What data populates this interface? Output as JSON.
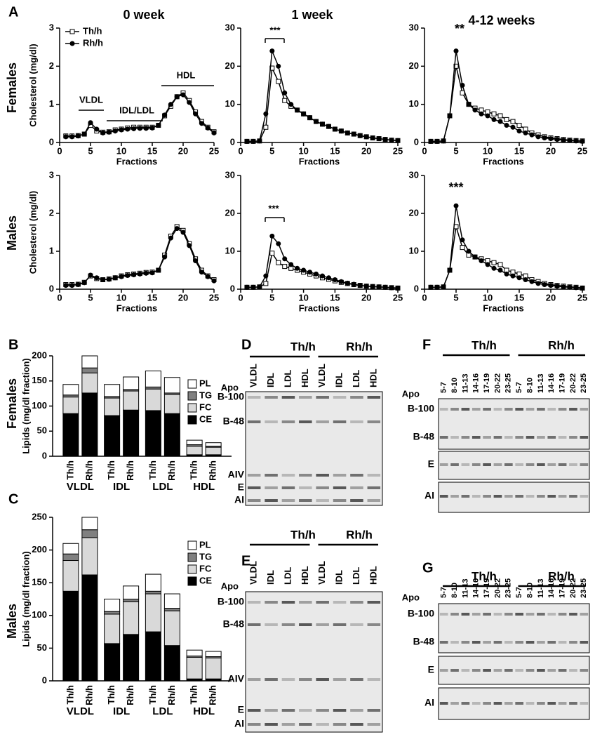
{
  "figure": {
    "panels": [
      "A",
      "B",
      "C",
      "D",
      "E",
      "F",
      "G"
    ],
    "columns": [
      "0 week",
      "1 week",
      "4-12 weeks"
    ],
    "rows": [
      "Females",
      "Males"
    ]
  },
  "gels": [
    {
      "genotypes": [
        "Th/h",
        "Rh/h"
      ],
      "apo": "Apo",
      "lanes": [
        "VLDL",
        "IDL",
        "LDL",
        "HDL",
        "VLDL",
        "IDL",
        "LDL",
        "HDL"
      ],
      "bands": [
        "B-100",
        "B-48",
        "AIV",
        "E",
        "AI"
      ]
    },
    {
      "genotypes": [
        "Th/h",
        "Rh/h"
      ],
      "apo": "Apo",
      "lanes": [
        "VLDL",
        "IDL",
        "LDL",
        "HDL",
        "VLDL",
        "IDL",
        "LDL",
        "HDL"
      ],
      "bands": [
        "B-100",
        "B-48",
        "AIV",
        "E",
        "AI"
      ]
    },
    {
      "genotypes": [
        "Th/h",
        "Rh/h"
      ],
      "apo": "Apo",
      "lanes": [
        "5-7",
        "8-10",
        "11-13",
        "14-16",
        "17-19",
        "20-22",
        "23-25",
        "5-7",
        "8-10",
        "11-13",
        "14-16",
        "17-19",
        "20-22",
        "23-25"
      ],
      "bands": [
        "B-100",
        "B-48",
        "E",
        "AI"
      ]
    },
    {
      "genotypes": [
        "Th/h",
        "Rh/h"
      ],
      "apo": "Apo",
      "lanes": [
        "5-7",
        "8-10",
        "11-13",
        "14-16",
        "17-19",
        "20-22",
        "23-25",
        "5-7",
        "8-10",
        "11-13",
        "14-16",
        "17-19",
        "20-22",
        "23-25"
      ],
      "bands": [
        "B-100",
        "B-48",
        "E",
        "AI"
      ]
    }
  ],
  "chart_data": [
    {
      "type": "line",
      "ylabel": "Cholesterol (mg/dl)",
      "xlabel": "Fractions",
      "annotations": [
        "VLDL",
        "IDL/LDL",
        "HDL"
      ],
      "legend": "upper left",
      "x": [
        1,
        2,
        3,
        4,
        5,
        6,
        7,
        8,
        9,
        10,
        11,
        12,
        13,
        14,
        15,
        16,
        17,
        18,
        19,
        20,
        21,
        22,
        23,
        24,
        25
      ],
      "xlim": [
        0,
        25
      ],
      "xticks": [
        0,
        5,
        10,
        15,
        20,
        25
      ],
      "ylim": [
        0,
        3
      ],
      "yticks": [
        0,
        1,
        2,
        3
      ],
      "series": [
        {
          "name": "Th/h",
          "color": "#000000",
          "marker": "square",
          "marker_fill": "#ffffff",
          "values": [
            0.17,
            0.17,
            0.18,
            0.22,
            0.45,
            0.3,
            0.27,
            0.28,
            0.33,
            0.35,
            0.38,
            0.4,
            0.4,
            0.4,
            0.4,
            0.45,
            0.7,
            0.95,
            1.2,
            1.3,
            1.1,
            0.8,
            0.55,
            0.4,
            0.28
          ]
        },
        {
          "name": "Rh/h",
          "color": "#000000",
          "marker": "circle",
          "marker_fill": "#000000",
          "values": [
            0.15,
            0.15,
            0.17,
            0.22,
            0.52,
            0.35,
            0.25,
            0.27,
            0.3,
            0.33,
            0.35,
            0.36,
            0.37,
            0.37,
            0.38,
            0.45,
            0.72,
            1.0,
            1.2,
            1.25,
            1.05,
            0.75,
            0.5,
            0.38,
            0.25
          ]
        }
      ]
    },
    {
      "type": "line",
      "xlabel": "Fractions",
      "annotations": [
        "***"
      ],
      "x": [
        1,
        2,
        3,
        4,
        5,
        6,
        7,
        8,
        9,
        10,
        11,
        12,
        13,
        14,
        15,
        16,
        17,
        18,
        19,
        20,
        21,
        22,
        23,
        24,
        25
      ],
      "xlim": [
        0,
        25
      ],
      "xticks": [
        0,
        5,
        10,
        15,
        20,
        25
      ],
      "ylim": [
        0,
        30
      ],
      "yticks": [
        0,
        10,
        20,
        30
      ],
      "series": [
        {
          "name": "Th/h",
          "color": "#000000",
          "marker": "square",
          "marker_fill": "#ffffff",
          "values": [
            0.3,
            0.3,
            0.4,
            4,
            19.5,
            16,
            11,
            9.5,
            8.5,
            7.5,
            6.5,
            5.5,
            4.8,
            4.2,
            3.5,
            3,
            2.5,
            2.2,
            1.8,
            1.5,
            1.2,
            1,
            0.8,
            0.6,
            0.5
          ]
        },
        {
          "name": "Rh/h",
          "color": "#000000",
          "marker": "circle",
          "marker_fill": "#000000",
          "values": [
            0.3,
            0.3,
            0.4,
            7.5,
            24,
            20,
            13,
            10,
            8.5,
            7.5,
            6.5,
            5.5,
            4.8,
            4.2,
            3.5,
            3,
            2.5,
            2.2,
            1.8,
            1.5,
            1.2,
            1,
            0.8,
            0.6,
            0.5
          ]
        }
      ]
    },
    {
      "type": "line",
      "xlabel": "Fractions",
      "annotations": [
        "**"
      ],
      "x": [
        1,
        2,
        3,
        4,
        5,
        6,
        7,
        8,
        9,
        10,
        11,
        12,
        13,
        14,
        15,
        16,
        17,
        18,
        19,
        20,
        21,
        22,
        23,
        24,
        25
      ],
      "xlim": [
        0,
        25
      ],
      "xticks": [
        0,
        5,
        10,
        15,
        20,
        25
      ],
      "ylim": [
        0,
        30
      ],
      "yticks": [
        0,
        10,
        20,
        30
      ],
      "series": [
        {
          "name": "Th/h",
          "color": "#000000",
          "marker": "square",
          "marker_fill": "#ffffff",
          "values": [
            0.3,
            0.3,
            0.4,
            7,
            20,
            13,
            10,
            9,
            8.5,
            8,
            7.5,
            7,
            6,
            5.5,
            4.5,
            3.5,
            2.5,
            2,
            1.5,
            1.2,
            1,
            0.8,
            0.6,
            0.5,
            0.4
          ]
        },
        {
          "name": "Rh/h",
          "color": "#000000",
          "marker": "circle",
          "marker_fill": "#000000",
          "values": [
            0.3,
            0.3,
            0.4,
            7,
            24,
            15,
            10,
            8.5,
            7.5,
            7,
            6,
            5.5,
            4.5,
            4,
            3,
            2.5,
            2,
            1.5,
            1.2,
            1,
            0.8,
            0.6,
            0.5,
            0.4,
            0.3
          ]
        }
      ]
    },
    {
      "type": "line",
      "ylabel": "Cholesterol (mg/dl)",
      "xlabel": "Fractions",
      "x": [
        1,
        2,
        3,
        4,
        5,
        6,
        7,
        8,
        9,
        10,
        11,
        12,
        13,
        14,
        15,
        16,
        17,
        18,
        19,
        20,
        21,
        22,
        23,
        24,
        25
      ],
      "xlim": [
        0,
        25
      ],
      "xticks": [
        0,
        5,
        10,
        15,
        20,
        25
      ],
      "ylim": [
        0,
        3
      ],
      "yticks": [
        0,
        1,
        2,
        3
      ],
      "series": [
        {
          "name": "Th/h",
          "color": "#000000",
          "marker": "square",
          "marker_fill": "#ffffff",
          "values": [
            0.12,
            0.12,
            0.13,
            0.18,
            0.35,
            0.28,
            0.25,
            0.27,
            0.3,
            0.35,
            0.38,
            0.4,
            0.42,
            0.44,
            0.45,
            0.5,
            0.9,
            1.4,
            1.65,
            1.55,
            1.2,
            0.8,
            0.5,
            0.35,
            0.25
          ]
        },
        {
          "name": "Rh/h",
          "color": "#000000",
          "marker": "circle",
          "marker_fill": "#000000",
          "values": [
            0.1,
            0.1,
            0.12,
            0.17,
            0.37,
            0.3,
            0.25,
            0.26,
            0.3,
            0.33,
            0.36,
            0.38,
            0.4,
            0.42,
            0.43,
            0.5,
            0.85,
            1.35,
            1.6,
            1.5,
            1.15,
            0.75,
            0.45,
            0.33,
            0.22
          ]
        }
      ]
    },
    {
      "type": "line",
      "xlabel": "Fractions",
      "annotations": [
        "***"
      ],
      "x": [
        1,
        2,
        3,
        4,
        5,
        6,
        7,
        8,
        9,
        10,
        11,
        12,
        13,
        14,
        15,
        16,
        17,
        18,
        19,
        20,
        21,
        22,
        23,
        24,
        25
      ],
      "xlim": [
        0,
        25
      ],
      "xticks": [
        0,
        5,
        10,
        15,
        20,
        25
      ],
      "ylim": [
        0,
        30
      ],
      "yticks": [
        0,
        10,
        20,
        30
      ],
      "series": [
        {
          "name": "Th/h",
          "color": "#000000",
          "marker": "square",
          "marker_fill": "#ffffff",
          "values": [
            0.5,
            0.5,
            0.6,
            1.5,
            9.5,
            7,
            6,
            5.5,
            5,
            4.5,
            4,
            3.5,
            3,
            2.6,
            2.2,
            1.8,
            1.5,
            1.2,
            1,
            0.8,
            0.7,
            0.6,
            0.5,
            0.4,
            0.3
          ]
        },
        {
          "name": "Rh/h",
          "color": "#000000",
          "marker": "circle",
          "marker_fill": "#000000",
          "values": [
            0.5,
            0.5,
            0.6,
            3.5,
            14,
            12,
            8,
            6.5,
            5.5,
            5,
            4.5,
            4,
            3.5,
            3,
            2.5,
            2,
            1.6,
            1.3,
            1,
            0.8,
            0.7,
            0.6,
            0.5,
            0.4,
            0.3
          ]
        }
      ]
    },
    {
      "type": "line",
      "xlabel": "Fractions",
      "annotations": [
        "***"
      ],
      "x": [
        1,
        2,
        3,
        4,
        5,
        6,
        7,
        8,
        9,
        10,
        11,
        12,
        13,
        14,
        15,
        16,
        17,
        18,
        19,
        20,
        21,
        22,
        23,
        24,
        25
      ],
      "xlim": [
        0,
        25
      ],
      "xticks": [
        0,
        5,
        10,
        15,
        20,
        25
      ],
      "ylim": [
        0,
        30
      ],
      "yticks": [
        0,
        10,
        20,
        30
      ],
      "series": [
        {
          "name": "Th/h",
          "color": "#000000",
          "marker": "square",
          "marker_fill": "#ffffff",
          "values": [
            0.5,
            0.5,
            0.6,
            5,
            16.5,
            11,
            9,
            8.5,
            8,
            7.5,
            7,
            6.5,
            5,
            4.5,
            4,
            3.5,
            2.5,
            2,
            1.5,
            1.2,
            1,
            0.8,
            0.6,
            0.5,
            0.3
          ]
        },
        {
          "name": "Rh/h",
          "color": "#000000",
          "marker": "circle",
          "marker_fill": "#000000",
          "values": [
            0.5,
            0.5,
            0.6,
            5,
            22,
            13,
            10,
            8.5,
            7.5,
            6.5,
            5.5,
            5,
            4,
            3.5,
            3,
            2.5,
            2,
            1.5,
            1.2,
            1,
            0.8,
            0.6,
            0.5,
            0.4,
            0.3
          ]
        }
      ]
    },
    {
      "type": "stacked_bar",
      "ylabel": "Lipids (mg/dl fraction)",
      "legend": "upper right",
      "categories": [
        "Th/h",
        "Rh/h",
        "Th/h",
        "Rh/h",
        "Th/h",
        "Rh/h",
        "Th/h",
        "Rh/h"
      ],
      "groups": [
        "VLDL",
        "IDL",
        "LDL",
        "HDL"
      ],
      "ylim": [
        0,
        200
      ],
      "yticks": [
        0,
        50,
        100,
        150,
        200
      ],
      "series": [
        {
          "name": "CE",
          "color": "#000000",
          "values": [
            85,
            126,
            81,
            92,
            91,
            85,
            3,
            3
          ]
        },
        {
          "name": "FC",
          "color": "#d9d9d9",
          "values": [
            33,
            40,
            35,
            38,
            43,
            38,
            17,
            15
          ]
        },
        {
          "name": "TG",
          "color": "#808080",
          "values": [
            4,
            10,
            3,
            3,
            4,
            3,
            3,
            2
          ]
        },
        {
          "name": "PL",
          "color": "#ffffff",
          "values": [
            21,
            24,
            24,
            25,
            32,
            31,
            9,
            7
          ]
        }
      ]
    },
    {
      "type": "stacked_bar",
      "ylabel": "Lipids (mg/dl fraction)",
      "legend": "upper right",
      "categories": [
        "Th/h",
        "Rh/h",
        "Th/h",
        "Rh/h",
        "Th/h",
        "Rh/h",
        "Th/h",
        "Rh/h"
      ],
      "groups": [
        "VLDL",
        "IDL",
        "LDL",
        "HDL"
      ],
      "ylim": [
        0,
        250
      ],
      "yticks": [
        0,
        50,
        100,
        150,
        200,
        250
      ],
      "series": [
        {
          "name": "CE",
          "color": "#000000",
          "values": [
            137,
            162,
            57,
            71,
            75,
            54,
            3,
            3
          ]
        },
        {
          "name": "FC",
          "color": "#d9d9d9",
          "values": [
            47,
            57,
            45,
            50,
            58,
            53,
            33,
            32
          ]
        },
        {
          "name": "TG",
          "color": "#808080",
          "values": [
            10,
            12,
            4,
            4,
            4,
            4,
            2,
            2
          ]
        },
        {
          "name": "PL",
          "color": "#ffffff",
          "values": [
            16,
            19,
            19,
            20,
            26,
            22,
            9,
            8
          ]
        }
      ]
    }
  ]
}
